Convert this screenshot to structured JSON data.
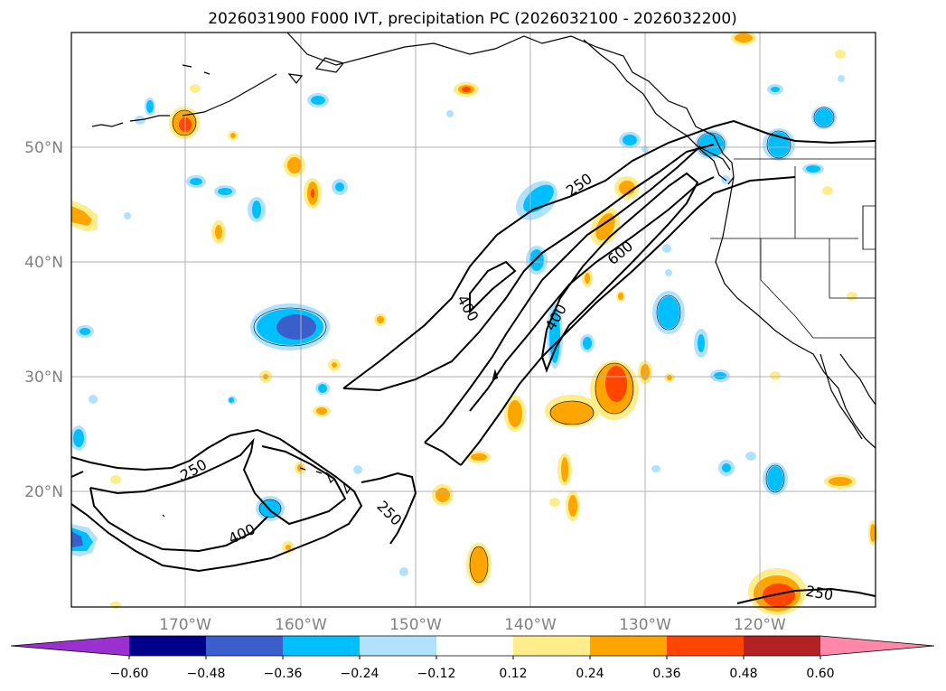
{
  "title": "2026031900 F000 IVT, precipitation PC (2026032100 - 2026032200)",
  "lat_labels": [
    "50°N",
    "40°N",
    "30°N",
    "20°N"
  ],
  "lon_labels": [
    "170°W",
    "160°W",
    "150°W",
    "140°W",
    "130°W",
    "120°W"
  ],
  "colorbar": {
    "tick_labels": [
      "−0.60",
      "−0.48",
      "−0.36",
      "−0.24",
      "−0.12",
      "0.12",
      "0.24",
      "0.36",
      "0.48",
      "0.60"
    ],
    "colors": [
      "#9b30d0",
      "#00008b",
      "#3a5fcd",
      "#00bfff",
      "#b0e2ff",
      "#ffffff",
      "#ffec8b",
      "#ffa500",
      "#ff4500",
      "#b22222",
      "#ff88aa"
    ]
  },
  "contour_labels": {
    "north_250": "250",
    "north_600": "600",
    "north_400": "400",
    "north_400b": "400",
    "south_250": "250",
    "south_400": "400",
    "south_250b": "250",
    "se_250": "250"
  }
}
